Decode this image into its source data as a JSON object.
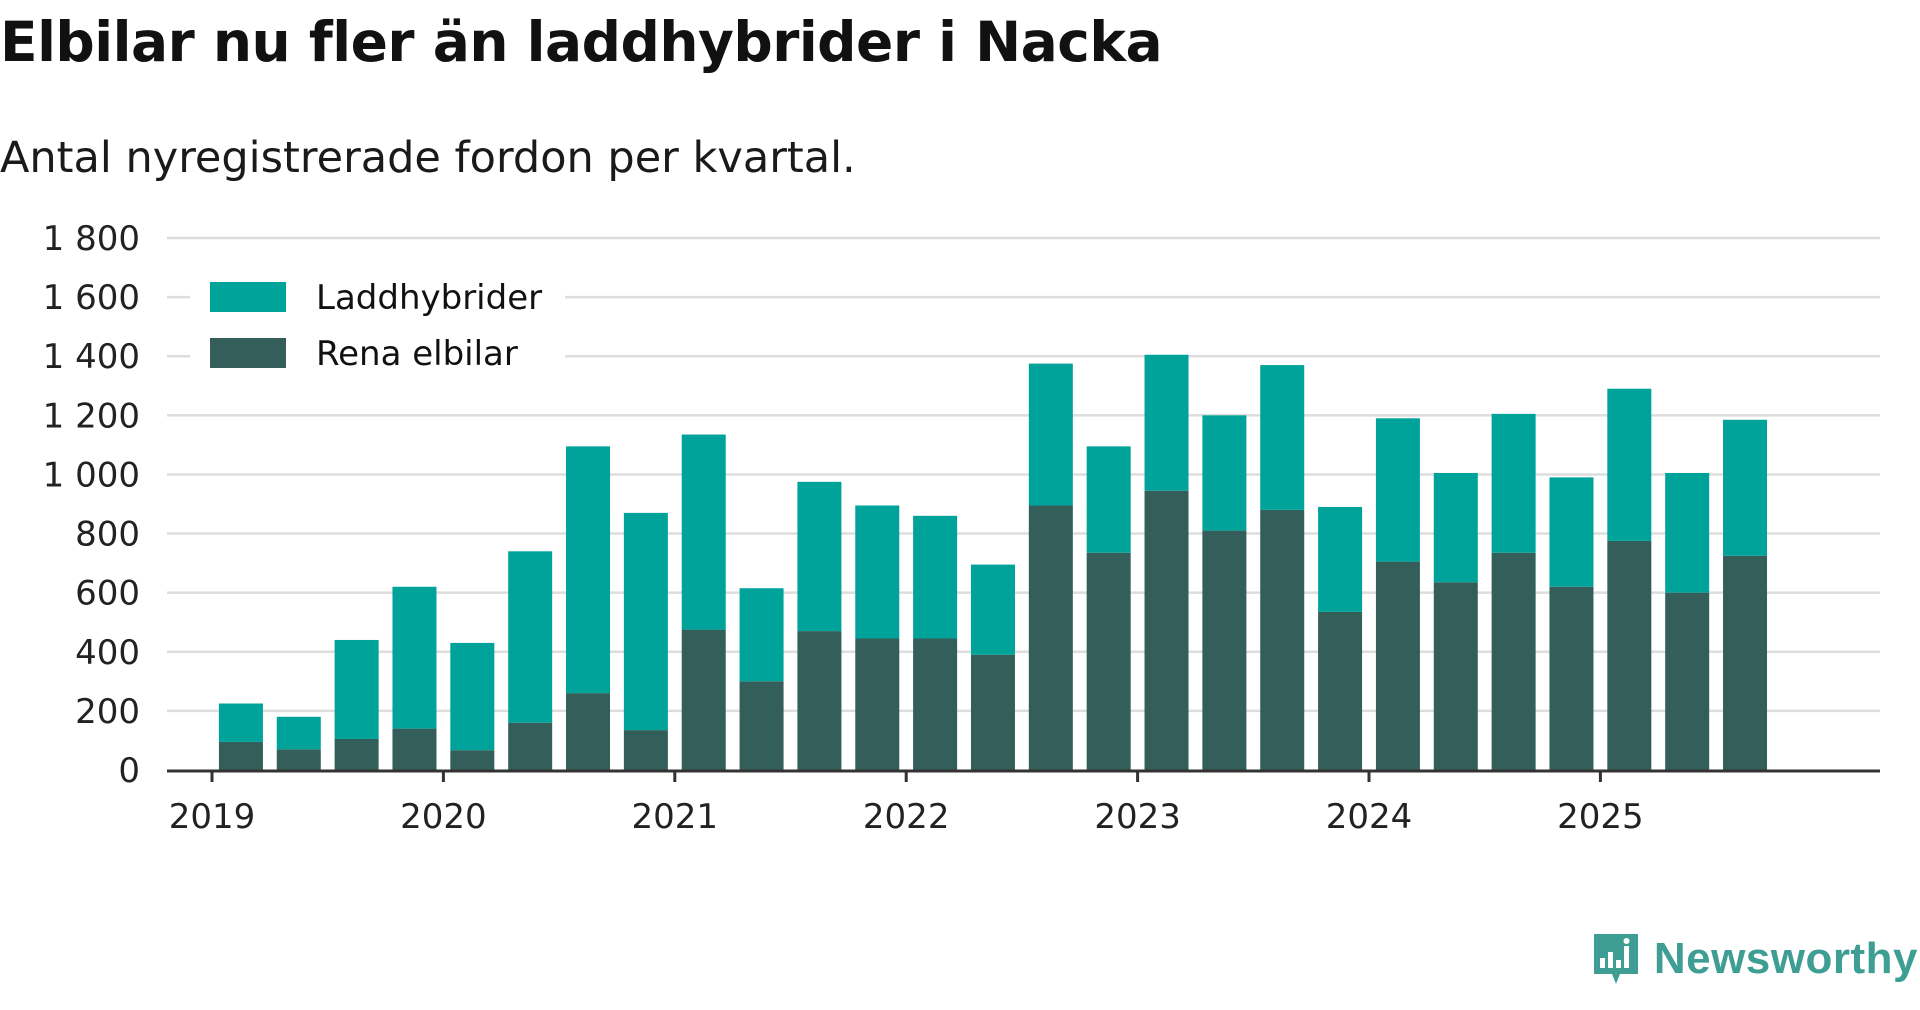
{
  "header": {
    "title": "Elbilar nu fler än laddhybrider i Nacka",
    "subtitle": "Antal nyregistrerade fordon per kvartal."
  },
  "brand": {
    "name": "Newsworthy",
    "icon": "newsworthy-logo-icon",
    "color": "#3f9e94"
  },
  "colors": {
    "laddhybrider": "#00a39a",
    "rena_elbilar": "#345e5a",
    "grid": "#dddddd",
    "axis": "#333333"
  },
  "chart_data": {
    "type": "bar",
    "stacked": true,
    "title": "Elbilar nu fler än laddhybrider i Nacka",
    "subtitle": "Antal nyregistrerade fordon per kvartal.",
    "xlabel": "",
    "ylabel": "",
    "ylim": [
      0,
      1800
    ],
    "yticks": [
      0,
      200,
      400,
      600,
      800,
      1000,
      1200,
      1400,
      1600,
      1800
    ],
    "ytick_labels": [
      "0",
      "200",
      "400",
      "600",
      "800",
      "1 000",
      "1 200",
      "1 400",
      "1 600",
      "1 800"
    ],
    "xtick_labels": [
      "2019",
      "2020",
      "2021",
      "2022",
      "2023",
      "2024",
      "2025"
    ],
    "grid": true,
    "legend_position": "top-left",
    "categories": [
      "2019 Q1",
      "2019 Q2",
      "2019 Q3",
      "2019 Q4",
      "2020 Q1",
      "2020 Q2",
      "2020 Q3",
      "2020 Q4",
      "2021 Q1",
      "2021 Q2",
      "2021 Q3",
      "2021 Q4",
      "2022 Q1",
      "2022 Q2",
      "2022 Q3",
      "2022 Q4",
      "2023 Q1",
      "2023 Q2",
      "2023 Q3",
      "2023 Q4",
      "2024 Q1",
      "2024 Q2",
      "2024 Q3",
      "2024 Q4",
      "2025 Q1",
      "2025 Q2",
      "2025 Q3",
      "2025 Q4"
    ],
    "series": [
      {
        "name": "Rena elbilar",
        "color": "#345e5a",
        "values": [
          95,
          70,
          105,
          140,
          67,
          160,
          260,
          135,
          475,
          300,
          470,
          445,
          445,
          390,
          895,
          735,
          945,
          810,
          880,
          535,
          705,
          635,
          735,
          620,
          775,
          600,
          725,
          0
        ]
      },
      {
        "name": "Laddhybrider",
        "color": "#00a39a",
        "values": [
          130,
          110,
          335,
          480,
          363,
          580,
          835,
          735,
          660,
          315,
          505,
          450,
          415,
          305,
          480,
          360,
          460,
          390,
          490,
          355,
          485,
          370,
          470,
          370,
          515,
          405,
          460,
          0
        ]
      }
    ],
    "legend": [
      "Laddhybrider",
      "Rena elbilar"
    ]
  }
}
